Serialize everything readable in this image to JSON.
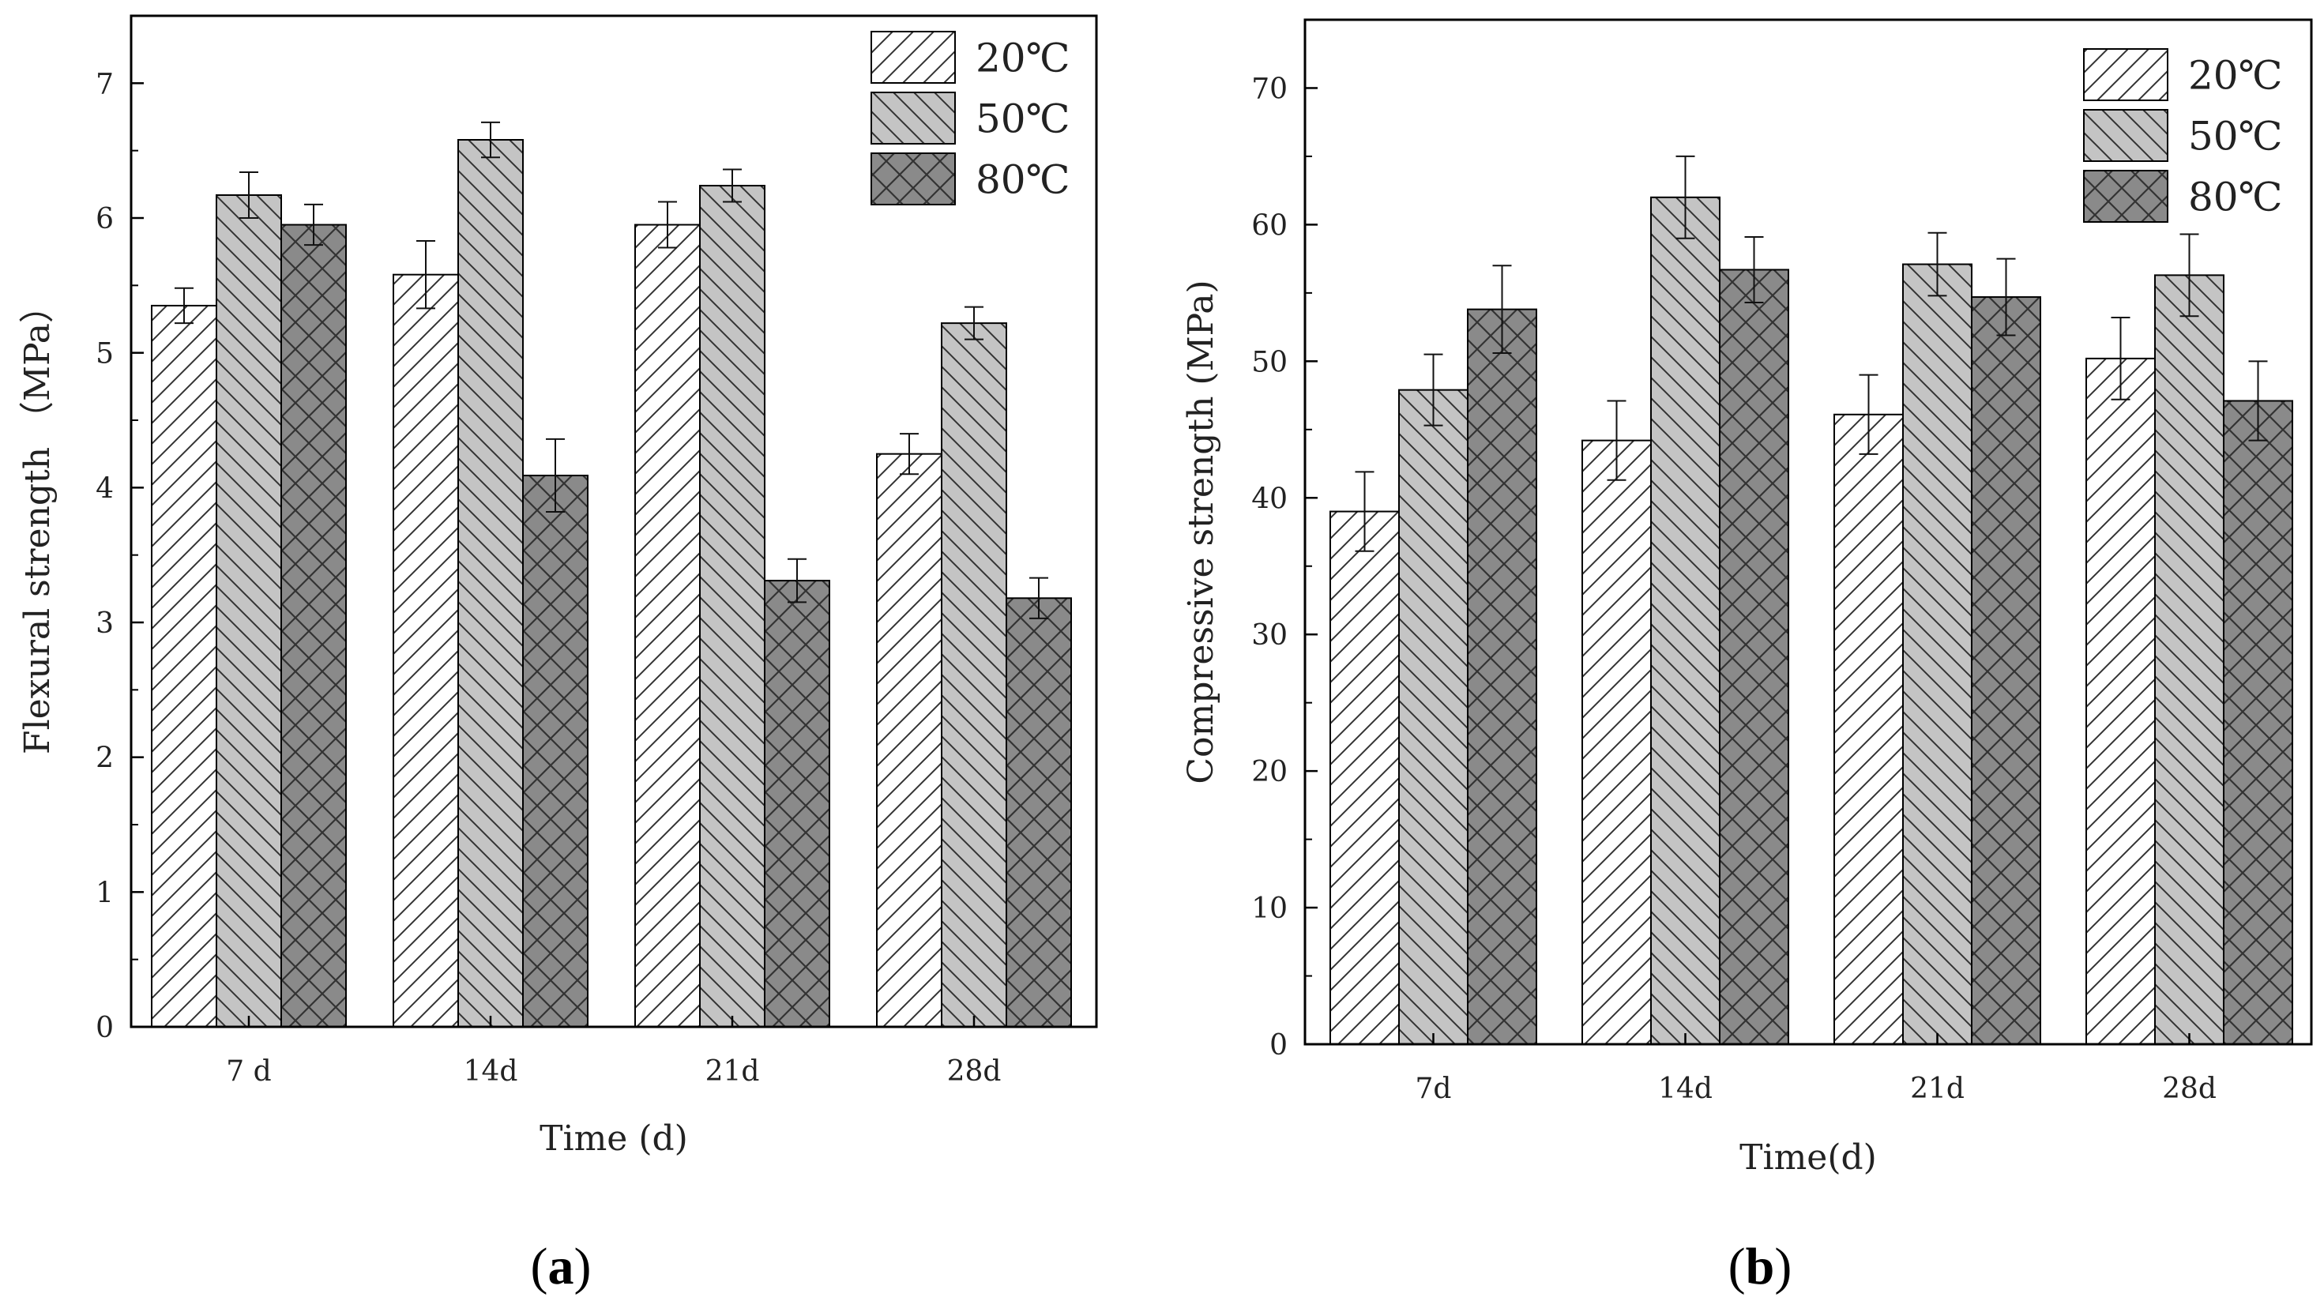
{
  "colors": {
    "series_20": "#ffffff",
    "series_50": "#c4c4c4",
    "series_80": "#8a8a8a",
    "hatch": "#333333",
    "axis": "#000000"
  },
  "legend": [
    "20℃",
    "50℃",
    "80℃"
  ],
  "chart_data": [
    {
      "type": "bar",
      "panel_label": "a",
      "title": "",
      "xlabel": "Time (d)",
      "ylabel": "Flexural strength （MPa）",
      "categories": [
        "7 d",
        "14d",
        "21d",
        "28d"
      ],
      "ylim": [
        0,
        7.5
      ],
      "yticks": [
        0,
        1,
        2,
        3,
        4,
        5,
        6,
        7
      ],
      "legend_position": "top-right",
      "series": [
        {
          "name": "20℃",
          "pattern": "diag-up",
          "values": [
            5.35,
            5.58,
            5.95,
            4.25
          ],
          "errors": [
            0.13,
            0.25,
            0.17,
            0.15
          ]
        },
        {
          "name": "50℃",
          "pattern": "diag-down",
          "values": [
            6.17,
            6.58,
            6.24,
            5.22
          ],
          "errors": [
            0.17,
            0.13,
            0.12,
            0.12
          ]
        },
        {
          "name": "80℃",
          "pattern": "cross",
          "values": [
            5.95,
            4.09,
            3.31,
            3.18
          ],
          "errors": [
            0.15,
            0.27,
            0.16,
            0.15
          ]
        }
      ]
    },
    {
      "type": "bar",
      "panel_label": "b",
      "title": "",
      "xlabel": "Time(d)",
      "ylabel": "Compressive strength (MPa)",
      "categories": [
        "7d",
        "14d",
        "21d",
        "28d"
      ],
      "ylim": [
        0,
        75
      ],
      "yticks": [
        0,
        10,
        20,
        30,
        40,
        50,
        60,
        70
      ],
      "legend_position": "top-right",
      "series": [
        {
          "name": "20℃",
          "pattern": "diag-up",
          "values": [
            39.0,
            44.2,
            46.1,
            50.2
          ],
          "errors": [
            2.9,
            2.9,
            2.9,
            3.0
          ]
        },
        {
          "name": "50℃",
          "pattern": "diag-down",
          "values": [
            47.9,
            62.0,
            57.1,
            56.3
          ],
          "errors": [
            2.6,
            3.0,
            2.3,
            3.0
          ]
        },
        {
          "name": "80℃",
          "pattern": "cross",
          "values": [
            53.8,
            56.7,
            54.7,
            47.1
          ],
          "errors": [
            3.2,
            2.4,
            2.8,
            2.9
          ]
        }
      ]
    }
  ]
}
